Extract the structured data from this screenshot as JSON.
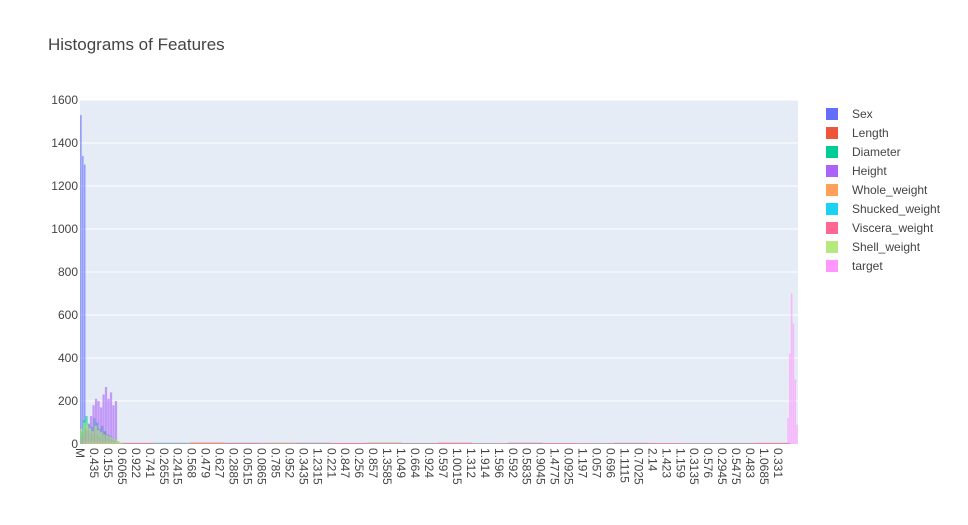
{
  "chart_data": {
    "type": "bar",
    "title": "Histograms of Features",
    "xlabel": "",
    "ylabel": "",
    "ylim": [
      0,
      1600
    ],
    "y_ticks": [
      0,
      200,
      400,
      600,
      800,
      1000,
      1200,
      1400,
      1600
    ],
    "grid": true,
    "legend_position": "right",
    "x_tick_labels": [
      "M",
      "0.435",
      "0.155",
      "0.6065",
      "0.922",
      "0.741",
      "0.2655",
      "0.2415",
      "0.568",
      "0.479",
      "0.627",
      "0.2885",
      "0.0515",
      "0.0865",
      "0.785",
      "0.952",
      "0.3435",
      "1.2315",
      "0.221",
      "0.847",
      "0.256",
      "0.857",
      "1.3585",
      "1.049",
      "0.664",
      "0.924",
      "0.597",
      "1.0015",
      "1.312",
      "1.914",
      "1.596",
      "0.592",
      "0.5835",
      "0.9045",
      "1.4775",
      "0.0925",
      "1.197",
      "0.057",
      "0.696",
      "1.1115",
      "0.7025",
      "2.14",
      "1.423",
      "1.159",
      "0.3135",
      "0.576",
      "0.2945",
      "0.5475",
      "0.483",
      "1.0685",
      "0.331"
    ],
    "series": [
      {
        "name": "Sex",
        "color": "#636efa",
        "region": [
          0.0,
          0.008
        ],
        "values": [
          1530,
          1340,
          1300
        ]
      },
      {
        "name": "Length",
        "color": "#ef553b",
        "region": [
          0.0,
          0.05
        ],
        "values": [
          40,
          55,
          70,
          60,
          45,
          50,
          62,
          38,
          30,
          48,
          55,
          35,
          25,
          20,
          15
        ]
      },
      {
        "name": "Diameter",
        "color": "#00cc96",
        "region": [
          0.0,
          0.055
        ],
        "values": [
          60,
          110,
          130,
          95,
          80,
          120,
          100,
          70,
          85,
          60,
          45,
          40,
          30,
          20,
          12
        ]
      },
      {
        "name": "Height",
        "color": "#ab63fa",
        "region": [
          0.0,
          0.052
        ],
        "values": [
          20,
          35,
          60,
          90,
          130,
          180,
          210,
          200,
          170,
          230,
          265,
          210,
          240,
          180,
          200
        ]
      },
      {
        "name": "Whole_weight",
        "color": "#ffa15a",
        "region": [
          0.005,
          0.99
        ],
        "values": [
          8,
          6,
          5,
          9,
          4,
          7,
          6,
          5,
          8,
          4,
          6,
          5,
          7,
          4,
          5,
          6,
          3,
          5,
          4,
          6
        ]
      },
      {
        "name": "Shucked_weight",
        "color": "#19d3f3",
        "region": [
          0.005,
          0.99
        ],
        "values": [
          5,
          4,
          6,
          3,
          5,
          4,
          6,
          3,
          4,
          5,
          3,
          4,
          5,
          3,
          4,
          5,
          3,
          4,
          5,
          3
        ]
      },
      {
        "name": "Viscera_weight",
        "color": "#ff6692",
        "region": [
          0.005,
          0.99
        ],
        "values": [
          4,
          5,
          3,
          4,
          6,
          3,
          4,
          5,
          3,
          4,
          6,
          3,
          4,
          5,
          3,
          4,
          5,
          3,
          4,
          5
        ]
      },
      {
        "name": "Shell_weight",
        "color": "#b6e880",
        "region": [
          0.0,
          0.06
        ],
        "values": [
          70,
          100,
          90,
          75,
          60,
          85,
          65,
          55,
          45,
          40,
          35,
          28,
          20,
          14,
          8
        ]
      },
      {
        "name": "target",
        "color": "#ff97ff",
        "region": [
          0.985,
          1.0
        ],
        "values": [
          120,
          420,
          700,
          560,
          300,
          90
        ]
      }
    ]
  }
}
